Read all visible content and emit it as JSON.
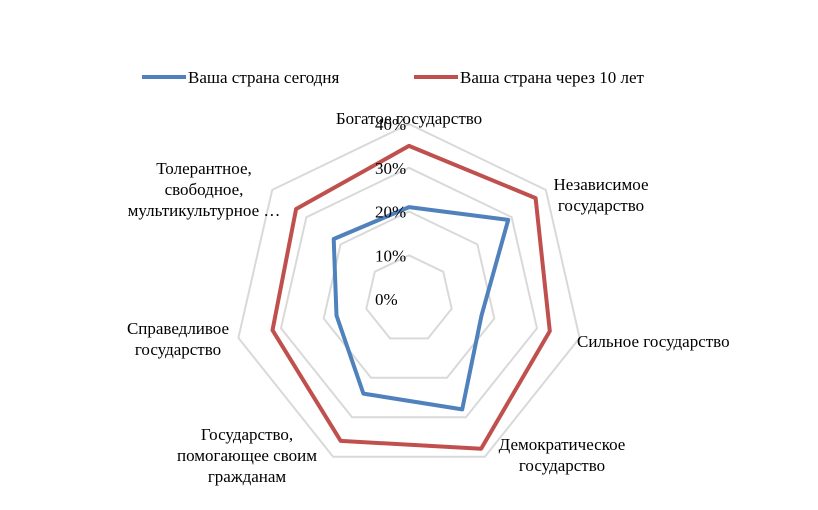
{
  "chart_data": {
    "type": "radar",
    "categories": [
      [
        "Богатое государство"
      ],
      [
        "Независимое",
        "государство"
      ],
      [
        "Сильное государство"
      ],
      [
        "Демократическое",
        "государство"
      ],
      [
        "Государство,",
        "помогающее своим",
        "гражданам"
      ],
      [
        "Справедливое",
        "государство"
      ],
      [
        "Толерантное,",
        "свободное,",
        "мультикультурное …"
      ]
    ],
    "ticks": [
      "0%",
      "10%",
      "20%",
      "30%",
      "40%"
    ],
    "rlim": [
      0,
      40
    ],
    "grid": true,
    "legend_position": "top",
    "series": [
      {
        "name": "Ваша страна сегодня",
        "color": "#4F81BD",
        "values": [
          21,
          29,
          17,
          28,
          24,
          17,
          22
        ]
      },
      {
        "name": "Ваша страна через 10 лет",
        "color": "#C0504D",
        "values": [
          35,
          37,
          33,
          38,
          36,
          32,
          33
        ]
      }
    ]
  }
}
